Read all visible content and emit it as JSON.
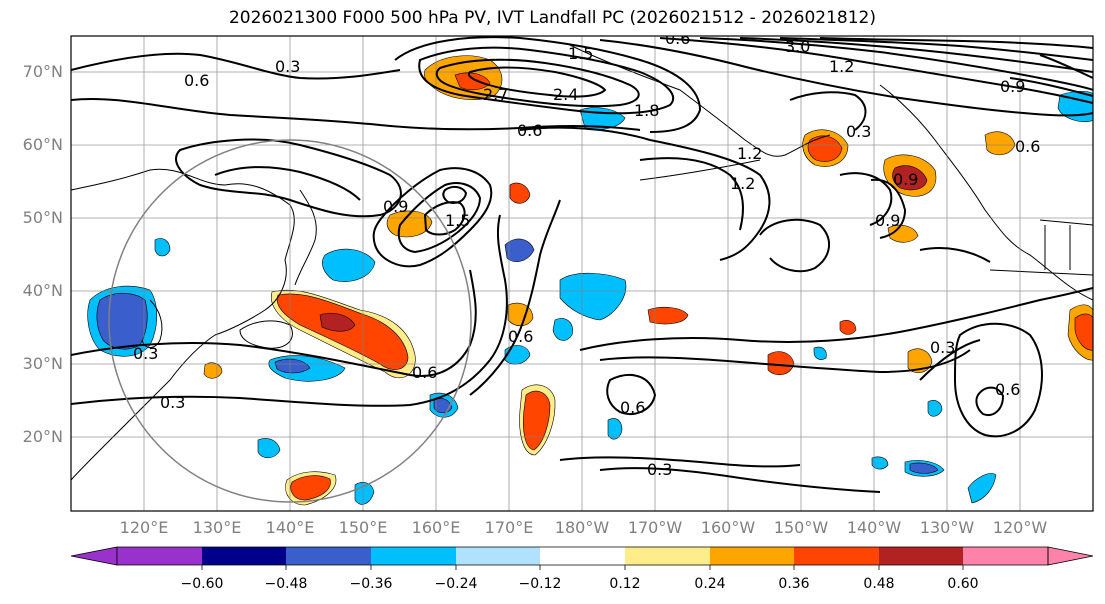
{
  "title": "2026021300 F000 500 hPa PV, IVT Landfall PC (2026021512 - 2026021812)",
  "lat_labels": [
    "70°N",
    "60°N",
    "50°N",
    "40°N",
    "30°N",
    "20°N"
  ],
  "lon_labels": [
    "120°E",
    "130°E",
    "140°E",
    "150°E",
    "160°E",
    "170°E",
    "180°W",
    "170°W",
    "160°W",
    "150°W",
    "140°W",
    "130°W",
    "120°W"
  ],
  "colorbar": {
    "ticks": [
      "−0.60",
      "−0.48",
      "−0.36",
      "−0.24",
      "−0.12",
      "0.12",
      "0.24",
      "0.36",
      "0.48",
      "0.60"
    ],
    "colors": [
      "#9932cc",
      "#00008b",
      "#3a5fcd",
      "#00bfff",
      "#b0e2ff",
      "#ffffff",
      "#ffec8b",
      "#ffa500",
      "#ff4500",
      "#b22222",
      "#ff82ab"
    ]
  },
  "contour_labels": [
    "0.6",
    "0.3",
    "1.5",
    "3.0",
    "1.2",
    "2.7",
    "0.9",
    "2.4",
    "1.8",
    "0.6",
    "0.3",
    "0.6",
    "0.9",
    "1.5",
    "0.9",
    "1.2",
    "1.2",
    "0.9",
    "0.3",
    "0.6",
    "0.3",
    "0.6",
    "0.6",
    "0.3",
    "0.6",
    "0.3",
    "0.6"
  ],
  "chart_data": {
    "type": "map",
    "title": "2026021300 F000 500 hPa PV, IVT Landfall PC (2026021512 - 2026021812)",
    "projection": "PlateCarree",
    "extent": {
      "lon": [
        110,
        250
      ],
      "lat": [
        10,
        75
      ]
    },
    "gridlines": true,
    "contour_field": "500 hPa PV",
    "filled_field": "IVT Landfall PC",
    "colorbar_levels": [
      -0.6,
      -0.48,
      -0.36,
      -0.24,
      -0.12,
      0.12,
      0.24,
      0.36,
      0.48,
      0.6
    ],
    "colorbar_extend": "both"
  }
}
